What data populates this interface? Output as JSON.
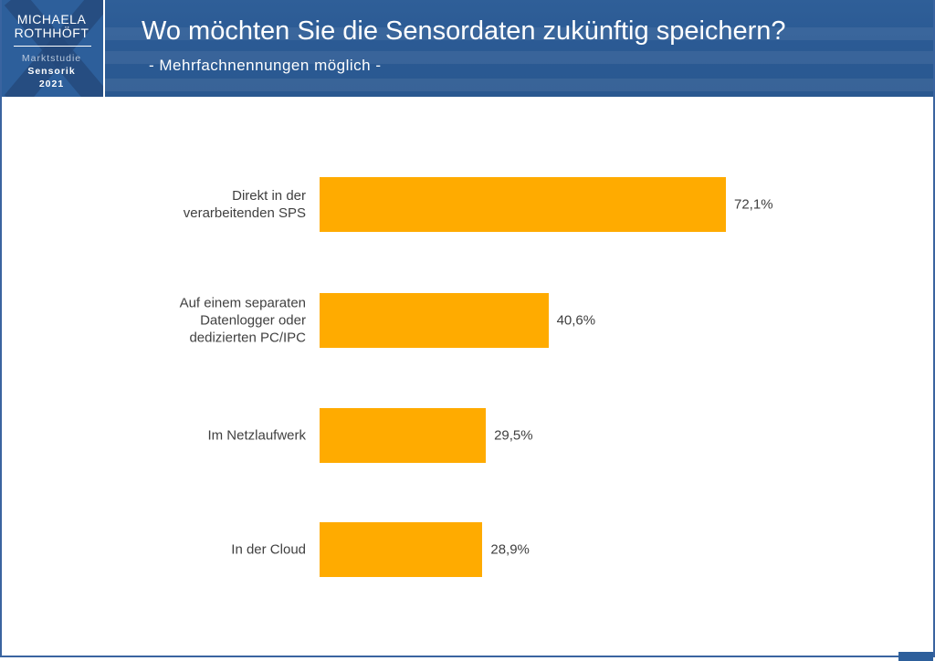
{
  "header": {
    "logo": {
      "name_line1": "MICHAELA",
      "name_line2": "ROTHHÖFT",
      "study": "Marktstudie",
      "topic": "Sensorik",
      "year": "2021"
    },
    "title": "Wo möchten Sie die Sensordaten zukünftig speichern?",
    "subtitle": "- Mehrfachnennungen möglich -"
  },
  "colors": {
    "bar": "#ffab00",
    "header": "#2d5f9b"
  },
  "chart_data": {
    "type": "bar",
    "orientation": "horizontal",
    "categories": [
      "Direkt in der verarbeitenden SPS",
      "Auf einem separaten Datenlogger oder dedizierten PC/IPC",
      "Im Netzlaufwerk",
      "In der Cloud"
    ],
    "category_lines": [
      [
        "Direkt in der",
        "verarbeitenden SPS"
      ],
      [
        "Auf einem separaten",
        "Datenlogger oder",
        "dedizierten PC/IPC"
      ],
      [
        "Im Netzlaufwerk"
      ],
      [
        "In der Cloud"
      ]
    ],
    "values": [
      72.1,
      40.6,
      29.5,
      28.9
    ],
    "labels": [
      "72,1%",
      "40,6%",
      "29,5%",
      "28,9%"
    ],
    "unit": "%",
    "xlim": [
      0,
      100
    ],
    "grid": false,
    "legend": "none"
  }
}
